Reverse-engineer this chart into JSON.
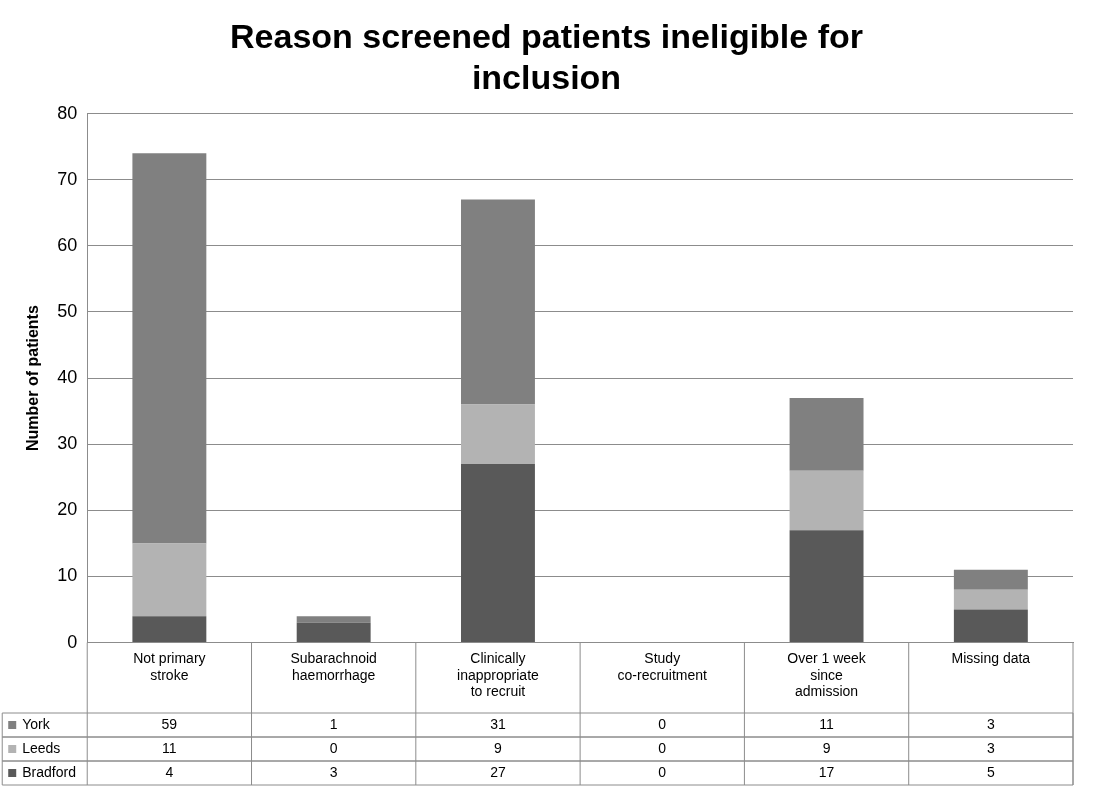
{
  "chart_data": {
    "type": "bar",
    "title": "Reason screened patients ineligible for inclusion",
    "ylabel": "Number of patients",
    "categories": [
      "Not primary stroke",
      "Subarachnoid haemorrhage",
      "Clinically inappropriate to recruit",
      "Study co-recruitment",
      "Over 1 week since admission",
      "Missing data"
    ],
    "series": [
      {
        "name": "Bradford",
        "color": "#595959",
        "values": [
          4,
          3,
          27,
          0,
          17,
          5
        ]
      },
      {
        "name": "Leeds",
        "color": "#b3b3b3",
        "values": [
          11,
          0,
          9,
          0,
          9,
          3
        ]
      },
      {
        "name": "York",
        "color": "#808080",
        "values": [
          59,
          1,
          31,
          0,
          11,
          3
        ]
      }
    ],
    "stacked": true,
    "ylim": [
      0,
      80
    ],
    "yticks": [
      0,
      10,
      20,
      30,
      40,
      50,
      60,
      70,
      80
    ],
    "grid": "y",
    "data_labels": true,
    "legend": "bottom left"
  }
}
